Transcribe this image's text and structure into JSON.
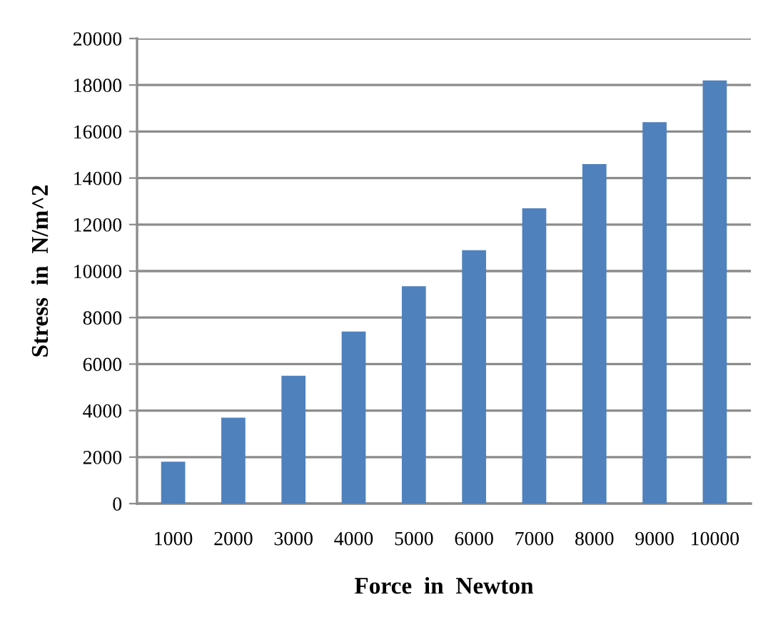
{
  "chart_data": {
    "type": "bar",
    "xlabel": "Force  in  Newton",
    "ylabel": "Stress  in  N/m^2",
    "categories": [
      "1000",
      "2000",
      "3000",
      "4000",
      "5000",
      "6000",
      "7000",
      "8000",
      "9000",
      "10000"
    ],
    "values": [
      1800,
      3700,
      5500,
      7400,
      9350,
      10900,
      12700,
      14600,
      16400,
      18200
    ],
    "color": "#4f81bd",
    "ylim": [
      0,
      20000
    ],
    "yticks": [
      0,
      2000,
      4000,
      6000,
      8000,
      10000,
      12000,
      14000,
      16000,
      18000,
      20000
    ],
    "grid": "y",
    "legend": false
  }
}
